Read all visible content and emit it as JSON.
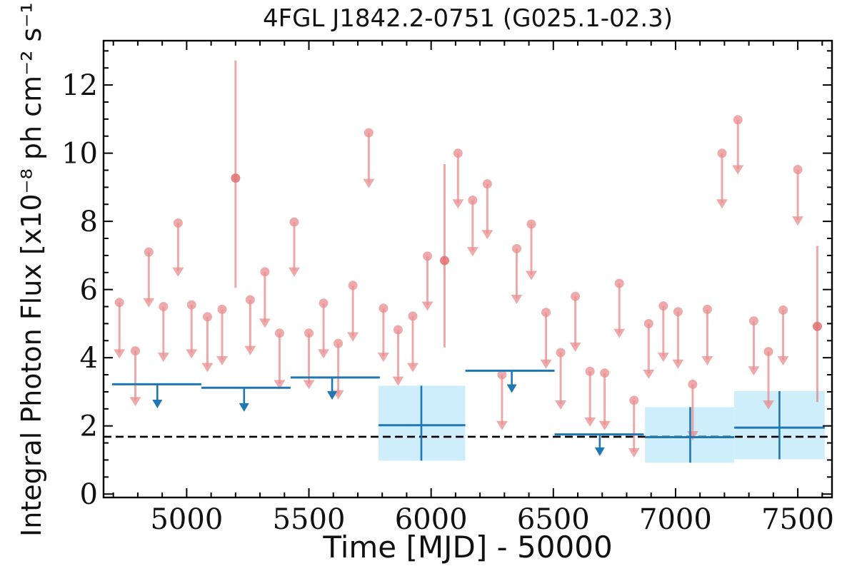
{
  "chart_data": {
    "type": "scatter",
    "title": "4FGL J1842.2-0751 (G025.1-02.3)",
    "xlabel": "Time [MJD] - 50000",
    "ylabel": "Integral Photon Flux [x10⁻⁸ ph cm⁻² s⁻¹]",
    "xlim": [
      4660,
      7640
    ],
    "ylim": [
      -0.1,
      13.3
    ],
    "x_ticks": [
      5000,
      5500,
      6000,
      6500,
      7000,
      7500
    ],
    "y_ticks": [
      0,
      2,
      4,
      6,
      8,
      10,
      12
    ],
    "reference_line": {
      "y": 1.68,
      "style": "dashed",
      "color": "#000000"
    },
    "series": [
      {
        "style": "upper_limits",
        "color": "#e88e8e",
        "x": [
          4725,
          4790,
          4845,
          4905,
          4965,
          5020,
          5085,
          5145,
          5260,
          5320,
          5380,
          5440,
          5500,
          5560,
          5620,
          5680,
          5745,
          5805,
          5865,
          5925,
          5985,
          6110,
          6170,
          6230,
          6290,
          6350,
          6410,
          6470,
          6530,
          6590,
          6650,
          6710,
          6770,
          6830,
          6890,
          6950,
          7010,
          7070,
          7130,
          7190,
          7255,
          7320,
          7380,
          7440,
          7500
        ],
        "y": [
          5.62,
          4.2,
          7.1,
          5.5,
          7.95,
          5.55,
          5.2,
          5.42,
          5.7,
          6.52,
          4.72,
          7.98,
          4.72,
          5.6,
          4.42,
          6.12,
          10.6,
          5.45,
          4.82,
          5.22,
          6.98,
          10.0,
          8.62,
          9.1,
          3.5,
          7.2,
          7.92,
          5.33,
          4.15,
          5.8,
          3.6,
          3.55,
          6.18,
          2.75,
          5.0,
          5.52,
          5.35,
          3.22,
          5.42,
          10.0,
          10.98,
          5.08,
          4.18,
          5.4,
          9.52
        ],
        "limit": [
          4.1,
          2.7,
          5.6,
          4.0,
          6.5,
          4.1,
          3.7,
          3.9,
          4.2,
          5.0,
          3.2,
          6.5,
          3.2,
          4.1,
          2.9,
          4.6,
          9.1,
          4.0,
          3.3,
          3.7,
          5.5,
          8.5,
          7.1,
          7.6,
          2.0,
          5.7,
          6.4,
          3.8,
          2.6,
          4.3,
          2.1,
          2.0,
          4.7,
          1.2,
          3.5,
          4.0,
          3.8,
          1.7,
          3.9,
          8.5,
          9.5,
          3.6,
          2.6,
          3.9,
          8.0
        ]
      },
      {
        "style": "detections",
        "color": "#e07070",
        "x": [
          5200,
          6055,
          7580
        ],
        "y": [
          9.27,
          6.85,
          4.92
        ],
        "err_low": [
          6.05,
          4.3,
          2.7
        ],
        "err_high": [
          12.72,
          9.68,
          7.28
        ]
      },
      {
        "style": "binned_upper_limits",
        "color": "#1f77b4",
        "x_start": [
          4695,
          5060,
          5425,
          6140,
          6505
        ],
        "x_end": [
          5060,
          5425,
          5790,
          6505,
          6870
        ],
        "y": [
          3.22,
          3.12,
          3.42,
          3.62,
          1.75
        ],
        "limit": [
          2.6,
          2.5,
          2.85,
          3.05,
          1.2
        ],
        "arrow_x": [
          4880,
          5235,
          5595,
          6330,
          6690
        ]
      },
      {
        "style": "binned_detections",
        "color": "#1f77b4",
        "band_color": "#cfeefb",
        "x_start": [
          5785,
          6875,
          7240
        ],
        "x_end": [
          6140,
          7240,
          7610
        ],
        "x_center": [
          5960,
          7060,
          7425
        ],
        "y": [
          2.02,
          1.67,
          1.95
        ],
        "err_low": [
          0.98,
          0.92,
          1.02
        ],
        "err_high": [
          3.18,
          2.55,
          3.02
        ]
      }
    ]
  }
}
